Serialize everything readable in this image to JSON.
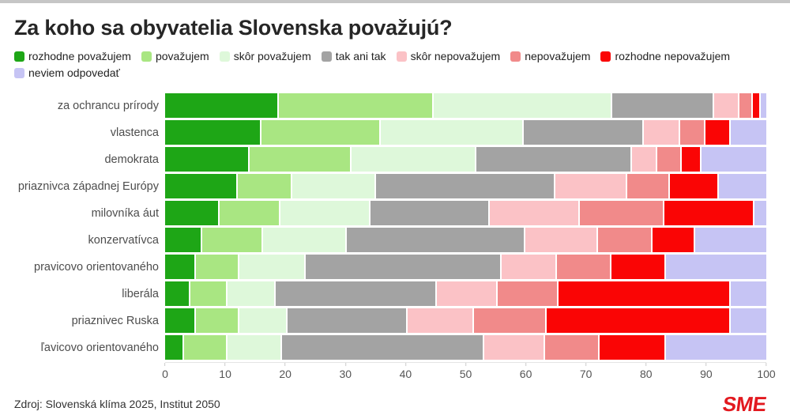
{
  "header": {
    "title": "Za koho sa obyvatelia Slovenska považujú?"
  },
  "chart_data": {
    "type": "bar",
    "orientation": "horizontal",
    "stacked": true,
    "title": "Za koho sa obyvatelia Slovenska považujú?",
    "legend_position": "top",
    "xlim": [
      0,
      100
    ],
    "x_ticks": [
      0,
      10,
      20,
      30,
      40,
      50,
      60,
      70,
      80,
      90,
      100
    ],
    "categories": [
      "za ochrancu prírody",
      "vlastenca",
      "demokrata",
      "priaznivca západnej Európy",
      "milovníka áut",
      "konzervatívca",
      "pravicovo orientovaného",
      "liberála",
      "priaznivec Ruska",
      "ľavicovo orientovaného"
    ],
    "series": [
      {
        "name": "rozhodne považujem",
        "color": "#1ea616",
        "values": [
          19,
          16,
          14,
          12,
          9,
          6,
          5,
          4,
          5,
          3
        ]
      },
      {
        "name": "považujem",
        "color": "#a9e682",
        "values": [
          26,
          20,
          17,
          9,
          10,
          10,
          7,
          6,
          7,
          7
        ]
      },
      {
        "name": "skôr považujem",
        "color": "#def8da",
        "values": [
          30,
          24,
          21,
          14,
          15,
          14,
          11,
          8,
          8,
          9
        ]
      },
      {
        "name": "tak ani tak",
        "color": "#a3a3a3",
        "values": [
          17,
          20,
          26,
          30,
          20,
          30,
          33,
          27,
          20,
          34
        ]
      },
      {
        "name": "skôr nepovažujem",
        "color": "#fbc2c6",
        "values": [
          4,
          6,
          4,
          12,
          15,
          12,
          9,
          10,
          11,
          10
        ]
      },
      {
        "name": "nepovažujem",
        "color": "#f18a8a",
        "values": [
          2,
          4,
          4,
          7,
          14,
          9,
          9,
          10,
          12,
          9
        ]
      },
      {
        "name": "rozhodne nepovažujem",
        "color": "#fa0505",
        "values": [
          1,
          4,
          3,
          8,
          15,
          7,
          9,
          29,
          31,
          11
        ]
      },
      {
        "name": "neviem odpovedať",
        "color": "#c6c4f4",
        "values": [
          1,
          6,
          11,
          8,
          2,
          12,
          17,
          6,
          6,
          17
        ]
      }
    ]
  },
  "footer": {
    "source": "Zdroj: Slovenská klíma 2025, Institut 2050",
    "logo": "SME"
  },
  "colors": {
    "top_edge": "#c6c6c6",
    "title_text": "#262626",
    "row_label_text": "#4d4d4d",
    "axis_text": "#555555",
    "logo_red": "#e2191f",
    "background": "#ffffff"
  }
}
